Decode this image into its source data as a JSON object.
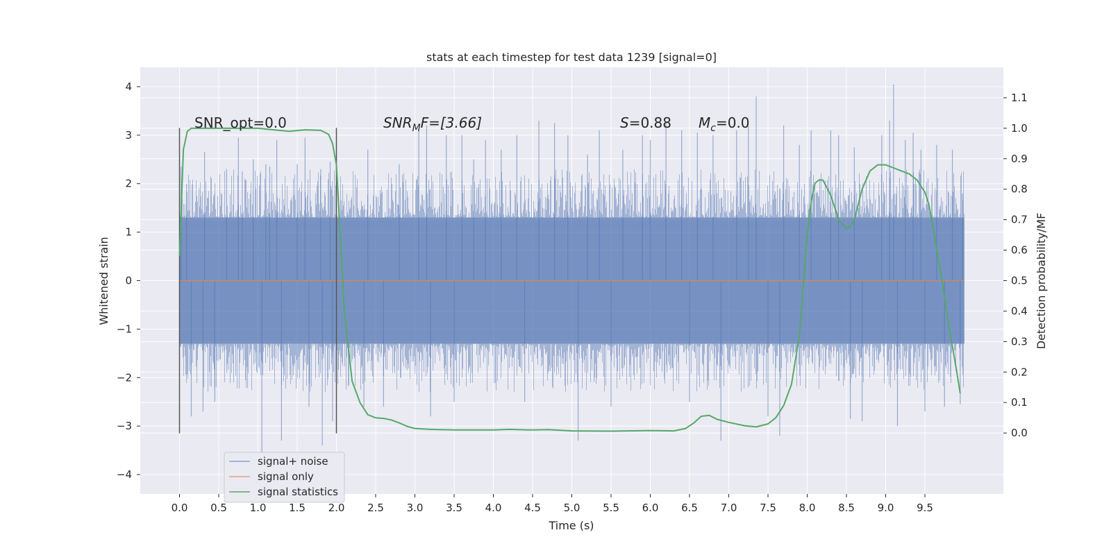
{
  "chart_data": {
    "type": "line",
    "title": "stats at each timestep for test data 1239 [signal=0]",
    "xlabel": "Time (s)",
    "ylabel": "Whitened strain",
    "ylabel_right": "Detection probability/MF",
    "xlim": [
      -0.5,
      10.5
    ],
    "ylim": [
      -4.4,
      4.4
    ],
    "ylim_right": [
      -0.2,
      1.2
    ],
    "x_ticks": [
      0.0,
      0.5,
      1.0,
      1.5,
      2.0,
      2.5,
      3.0,
      3.5,
      4.0,
      4.5,
      5.0,
      5.5,
      6.0,
      6.5,
      7.0,
      7.5,
      8.0,
      8.5,
      9.0,
      9.5
    ],
    "x_tick_labels": [
      "0.0",
      "0.5",
      "1.0",
      "1.5",
      "2.0",
      "2.5",
      "3.0",
      "3.5",
      "4.0",
      "4.5",
      "5.0",
      "5.5",
      "6.0",
      "6.5",
      "7.0",
      "7.5",
      "8.0",
      "8.5",
      "9.0",
      "9.5"
    ],
    "y_ticks": [
      4,
      3,
      2,
      1,
      0,
      -1,
      -2,
      -3,
      -4
    ],
    "y_tick_labels": [
      "4",
      "3",
      "2",
      "1",
      "0",
      "−1",
      "−2",
      "−3",
      "−4"
    ],
    "y_right_ticks": [
      1.1,
      1.0,
      0.9,
      0.8,
      0.7,
      0.6,
      0.5,
      0.4,
      0.3,
      0.2,
      0.1,
      0.0
    ],
    "y_right_tick_labels": [
      "1.1",
      "1.0",
      "0.9",
      "0.8",
      "0.7",
      "0.6",
      "0.5",
      "0.4",
      "0.3",
      "0.2",
      "0.1",
      "0.0"
    ],
    "grid": true,
    "legend_position": "lower-left",
    "colors": {
      "signal_noise": "#4c72b0",
      "signal_only": "#dd8452",
      "signal_statistics": "#55a868",
      "plot_background": "#eaeaf2",
      "grid": "#ffffff",
      "marker_lines": "#555555"
    },
    "annotations": [
      {
        "text": "SNR_opt=0.0",
        "x": 0.2,
        "y": 3.2
      },
      {
        "text": "SNR_MF=[3.66]",
        "x": 2.6,
        "y": 3.2
      },
      {
        "text": "S=0.88",
        "x": 5.6,
        "y": 3.2
      },
      {
        "text": "M_c=0.0",
        "x": 6.6,
        "y": 3.2
      }
    ],
    "annotation_parts": {
      "snr_opt": "SNR_opt=0.0",
      "snr_mf_main": "SNR",
      "snr_mf_sub": "M",
      "snr_mf_rest": "F=[3.66]",
      "s_symbol": "S",
      "s_value": "=0.88",
      "mc_symbol": "M",
      "mc_sub": "c",
      "mc_value": "=0.0"
    },
    "vertical_markers": [
      {
        "x": 0.0,
        "y": [
          -3.15,
          3.15
        ]
      },
      {
        "x": 2.0,
        "y": [
          -3.15,
          3.15
        ]
      }
    ],
    "series": [
      {
        "name": "signal+ noise",
        "axis": "left",
        "duration": [
          0.0,
          10.0
        ],
        "band": 1.3,
        "spikes": [
          [
            0.02,
            2.35
          ],
          [
            0.09,
            2.0
          ],
          [
            0.15,
            -2.8
          ],
          [
            0.32,
            2.65
          ],
          [
            0.3,
            -2.7
          ],
          [
            0.45,
            -2.5
          ],
          [
            0.6,
            2.3
          ],
          [
            0.75,
            2.95
          ],
          [
            0.8,
            2.25
          ],
          [
            0.94,
            2.5
          ],
          [
            1.05,
            -3.6
          ],
          [
            1.1,
            2.4
          ],
          [
            1.15,
            2.35
          ],
          [
            1.24,
            2.9
          ],
          [
            1.3,
            -3.3
          ],
          [
            1.5,
            2.4
          ],
          [
            1.6,
            2.95
          ],
          [
            1.65,
            -2.6
          ],
          [
            1.8,
            2.3
          ],
          [
            1.82,
            -3.4
          ],
          [
            1.92,
            2.45
          ],
          [
            1.95,
            -2.9
          ],
          [
            2.4,
            2.7
          ],
          [
            2.35,
            -2.6
          ],
          [
            2.6,
            -2.6
          ],
          [
            2.8,
            2.4
          ],
          [
            3.05,
            3.1
          ],
          [
            3.15,
            3.2
          ],
          [
            3.2,
            -2.8
          ],
          [
            3.4,
            3.0
          ],
          [
            3.5,
            -2.5
          ],
          [
            3.6,
            3.0
          ],
          [
            3.75,
            2.5
          ],
          [
            3.9,
            2.9
          ],
          [
            4.1,
            2.7
          ],
          [
            4.3,
            3.0
          ],
          [
            4.4,
            -2.5
          ],
          [
            4.58,
            3.3
          ],
          [
            4.78,
            3.25
          ],
          [
            4.95,
            3.0
          ],
          [
            5.08,
            -3.3
          ],
          [
            5.2,
            2.6
          ],
          [
            5.35,
            3.1
          ],
          [
            5.5,
            -2.6
          ],
          [
            5.65,
            2.7
          ],
          [
            5.9,
            3.0
          ],
          [
            6.0,
            2.9
          ],
          [
            6.2,
            3.25
          ],
          [
            6.4,
            3.1
          ],
          [
            6.5,
            -2.5
          ],
          [
            6.6,
            3.05
          ],
          [
            6.8,
            3.0
          ],
          [
            6.9,
            -3.3
          ],
          [
            7.1,
            3.1
          ],
          [
            7.25,
            3.2
          ],
          [
            7.35,
            3.8
          ],
          [
            7.5,
            -2.8
          ],
          [
            7.65,
            -3.2
          ],
          [
            7.7,
            3.2
          ],
          [
            7.9,
            2.8
          ],
          [
            8.05,
            3.1
          ],
          [
            8.3,
            3.1
          ],
          [
            8.4,
            3.0
          ],
          [
            8.55,
            -2.85
          ],
          [
            8.6,
            2.75
          ],
          [
            8.7,
            -2.9
          ],
          [
            8.95,
            3.0
          ],
          [
            9.05,
            3.3
          ],
          [
            9.1,
            4.05
          ],
          [
            9.15,
            -3.0
          ],
          [
            9.25,
            2.9
          ],
          [
            9.35,
            3.05
          ],
          [
            9.45,
            2.7
          ],
          [
            9.5,
            -2.7
          ],
          [
            9.65,
            2.8
          ],
          [
            9.75,
            -2.6
          ],
          [
            9.85,
            2.7
          ],
          [
            9.95,
            -2.55
          ],
          [
            9.98,
            1.8
          ]
        ]
      },
      {
        "name": "signal only",
        "axis": "left",
        "x": [
          0.0,
          10.0
        ],
        "y": [
          0.0,
          0.0
        ]
      },
      {
        "name": "signal statistics",
        "axis": "right",
        "x": [
          0.0,
          0.05,
          0.1,
          0.15,
          0.3,
          0.5,
          1.0,
          1.2,
          1.4,
          1.6,
          1.8,
          1.9,
          1.95,
          2.0,
          2.05,
          2.1,
          2.2,
          2.3,
          2.4,
          2.5,
          2.6,
          2.7,
          2.8,
          2.9,
          3.0,
          3.2,
          3.5,
          4.0,
          4.2,
          4.5,
          4.7,
          5.0,
          5.5,
          6.0,
          6.3,
          6.45,
          6.55,
          6.65,
          6.75,
          6.85,
          7.0,
          7.2,
          7.35,
          7.5,
          7.6,
          7.7,
          7.8,
          7.9,
          7.95,
          8.0,
          8.05,
          8.1,
          8.15,
          8.2,
          8.3,
          8.4,
          8.5,
          8.55,
          8.6,
          8.7,
          8.8,
          8.9,
          9.0,
          9.1,
          9.2,
          9.3,
          9.4,
          9.5,
          9.55,
          9.6,
          9.7,
          9.8,
          9.9,
          9.95
        ],
        "y": [
          0.58,
          0.93,
          0.99,
          1.0,
          1.0,
          1.0,
          1.0,
          0.995,
          0.99,
          0.995,
          0.993,
          0.98,
          0.95,
          0.88,
          0.65,
          0.4,
          0.17,
          0.1,
          0.06,
          0.05,
          0.048,
          0.043,
          0.033,
          0.022,
          0.015,
          0.012,
          0.01,
          0.01,
          0.012,
          0.01,
          0.011,
          0.007,
          0.006,
          0.008,
          0.007,
          0.015,
          0.032,
          0.055,
          0.058,
          0.045,
          0.035,
          0.024,
          0.02,
          0.03,
          0.05,
          0.09,
          0.16,
          0.32,
          0.48,
          0.65,
          0.76,
          0.82,
          0.83,
          0.83,
          0.78,
          0.7,
          0.67,
          0.68,
          0.7,
          0.8,
          0.86,
          0.88,
          0.88,
          0.87,
          0.86,
          0.85,
          0.83,
          0.79,
          0.75,
          0.68,
          0.53,
          0.36,
          0.21,
          0.13
        ]
      }
    ]
  }
}
